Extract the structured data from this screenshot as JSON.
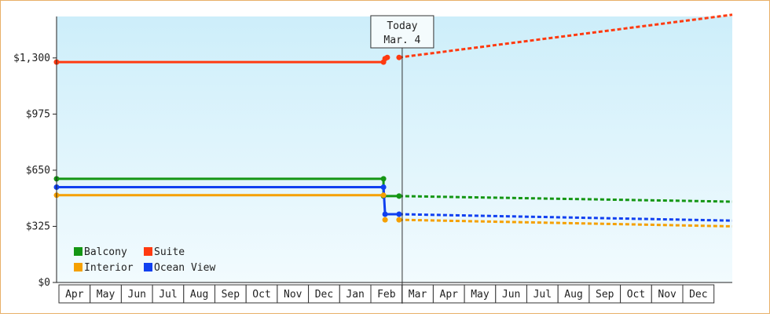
{
  "chart_data": {
    "type": "line",
    "title": "",
    "xlabel": "",
    "ylabel": "",
    "y_ticks": [
      {
        "value": 0,
        "label": "$0"
      },
      {
        "value": 325,
        "label": "$325"
      },
      {
        "value": 650,
        "label": "$650"
      },
      {
        "value": 975,
        "label": "$975"
      },
      {
        "value": 1300,
        "label": "$1,300"
      }
    ],
    "ylim": [
      0,
      1540
    ],
    "x_months": [
      "Apr",
      "May",
      "Jun",
      "Jul",
      "Aug",
      "Sep",
      "Oct",
      "Nov",
      "Dec",
      "Jan",
      "Feb",
      "Mar",
      "Apr",
      "May",
      "Jun",
      "Jul",
      "Aug",
      "Sep",
      "Oct",
      "Nov",
      "Dec"
    ],
    "xlim": [
      0,
      21.7
    ],
    "today": {
      "line1": "Today",
      "line2": "Mar. 4",
      "x": 11.1
    },
    "legend_placement": "bottom-left",
    "grid": false,
    "background_gradient": [
      "#cdeefa",
      "#f2fbfe"
    ],
    "series": [
      {
        "name": "Suite",
        "color": "#ff3a10",
        "historical": [
          [
            0,
            1276
          ],
          [
            10.5,
            1276
          ],
          [
            10.55,
            1296
          ],
          [
            10.62,
            1303
          ]
        ],
        "markers": [
          [
            0,
            1276
          ],
          [
            10.5,
            1276
          ],
          [
            10.55,
            1296
          ],
          [
            10.62,
            1303
          ],
          [
            11.0,
            1303
          ]
        ],
        "forecast": [
          [
            11.0,
            1303
          ],
          [
            21.7,
            1550
          ]
        ]
      },
      {
        "name": "Balcony",
        "color": "#149614",
        "historical": [
          [
            0,
            600
          ],
          [
            10.5,
            600
          ],
          [
            10.5,
            500
          ],
          [
            11.0,
            500
          ]
        ],
        "markers": [
          [
            0,
            600
          ],
          [
            10.5,
            600
          ],
          [
            10.5,
            500
          ],
          [
            11.0,
            500
          ]
        ],
        "forecast": [
          [
            11.0,
            500
          ],
          [
            21.7,
            468
          ]
        ]
      },
      {
        "name": "Ocean View",
        "color": "#1040f0",
        "historical": [
          [
            0,
            552
          ],
          [
            10.5,
            552
          ],
          [
            10.55,
            395
          ],
          [
            11.0,
            395
          ]
        ],
        "markers": [
          [
            0,
            552
          ],
          [
            10.5,
            552
          ],
          [
            10.55,
            395
          ],
          [
            11.0,
            395
          ]
        ],
        "forecast": [
          [
            11.0,
            395
          ],
          [
            21.7,
            358
          ]
        ]
      },
      {
        "name": "Interior",
        "color": "#f5a000",
        "historical": [
          [
            0,
            505
          ],
          [
            10.5,
            505
          ]
        ],
        "markers": [
          [
            0,
            505
          ],
          [
            10.5,
            505
          ],
          [
            10.55,
            363
          ],
          [
            11.0,
            363
          ]
        ],
        "forecast": [
          [
            11.0,
            363
          ],
          [
            21.7,
            325
          ]
        ]
      }
    ],
    "legend": [
      {
        "name": "Balcony",
        "color": "#149614"
      },
      {
        "name": "Suite",
        "color": "#ff3a10"
      },
      {
        "name": "Interior",
        "color": "#f5a000"
      },
      {
        "name": "Ocean View",
        "color": "#1040f0"
      }
    ]
  }
}
